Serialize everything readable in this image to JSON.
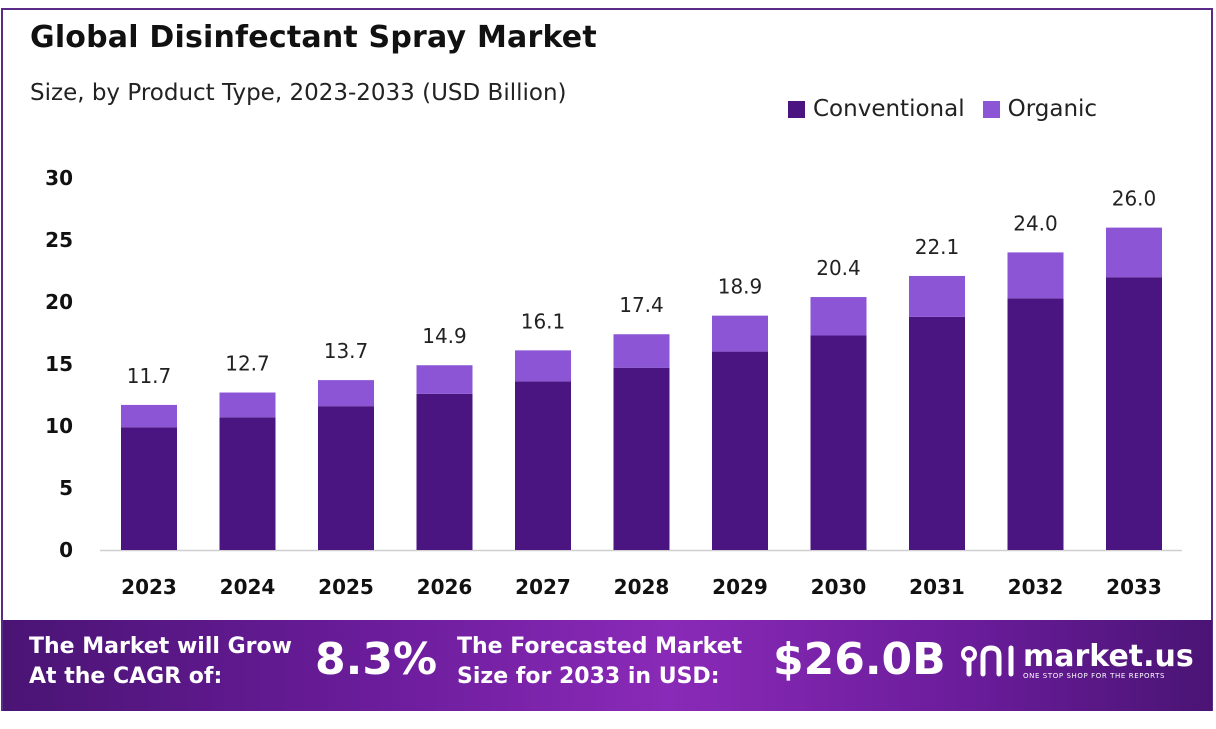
{
  "header": {
    "title": "Global Disinfectant Spray Market",
    "subtitle": "Size, by Product Type, 2023-2033 (USD Billion)"
  },
  "legend": {
    "items": [
      {
        "label": "Conventional",
        "color": "#4a1580"
      },
      {
        "label": "Organic",
        "color": "#8b55d6"
      }
    ]
  },
  "chart_data": {
    "type": "bar",
    "stacked": true,
    "categories": [
      "2023",
      "2024",
      "2025",
      "2026",
      "2027",
      "2028",
      "2029",
      "2030",
      "2031",
      "2032",
      "2033"
    ],
    "series": [
      {
        "name": "Conventional",
        "color": "#4a1580",
        "values": [
          9.9,
          10.7,
          11.6,
          12.6,
          13.6,
          14.7,
          16.0,
          17.3,
          18.8,
          20.3,
          22.0
        ]
      },
      {
        "name": "Organic",
        "color": "#8b55d6",
        "values": [
          1.8,
          2.0,
          2.1,
          2.3,
          2.5,
          2.7,
          2.9,
          3.1,
          3.3,
          3.7,
          4.0
        ]
      }
    ],
    "totals": [
      "11.7",
      "12.7",
      "13.7",
      "14.9",
      "16.1",
      "17.4",
      "18.9",
      "20.4",
      "22.1",
      "24.0",
      "26.0"
    ],
    "yticks": [
      0,
      5,
      10,
      15,
      20,
      25,
      30
    ],
    "ylim": [
      0,
      30
    ],
    "grid": false,
    "legend_position": "top-right"
  },
  "footer": {
    "cagr_line1": "The Market will Grow",
    "cagr_line2": "At the CAGR of:",
    "cagr_value": "8.3%",
    "forecast_line1": "The Forecasted Market",
    "forecast_line2": "Size for 2033 in USD:",
    "forecast_value": "$26.0B",
    "brand_name": "market.us",
    "brand_tagline": "ONE STOP SHOP FOR THE REPORTS"
  }
}
